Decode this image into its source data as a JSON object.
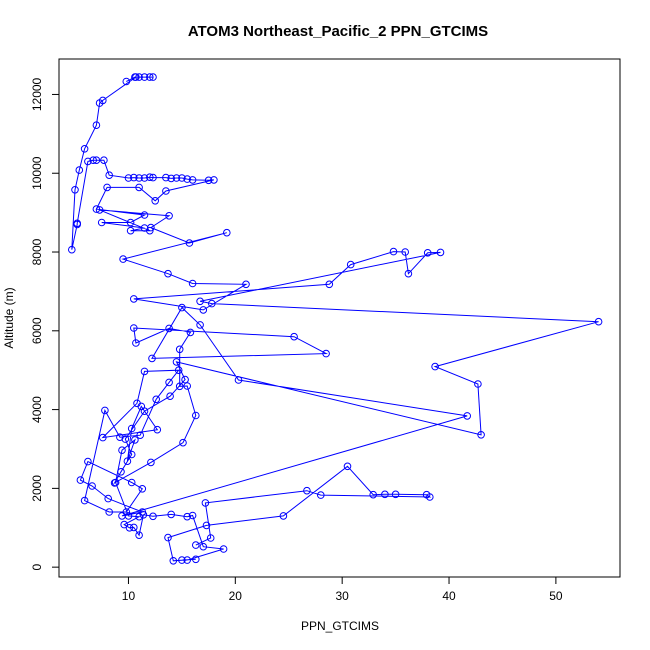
{
  "chart_data": {
    "type": "line",
    "title": "ATOM3 Northeast_Pacific_2 PPN_GTCIMS",
    "xlabel": "PPN_GTCIMS",
    "ylabel": "Altitude (m)",
    "xlim": [
      3.5,
      56
    ],
    "ylim": [
      -250,
      12900
    ],
    "xticks": [
      10,
      20,
      30,
      40,
      50
    ],
    "yticks": [
      0,
      2000,
      4000,
      6000,
      8000,
      10000,
      12000
    ],
    "grid": false,
    "legend": "none",
    "line_color": "#0000ff",
    "marker": "open-circle",
    "series": [
      {
        "x": [
          9.8,
          10.6,
          11.0,
          11.5,
          12.0,
          12.3,
          10.7,
          7.6,
          7.3,
          7.0,
          5.9,
          5.4,
          5.0,
          4.7,
          5.2,
          5.2,
          6.2,
          6.7,
          7.0,
          7.7,
          8.2,
          10.0,
          10.5,
          11.0,
          11.5,
          12.0,
          12.3,
          13.5,
          14.0,
          14.5,
          15.0,
          15.5,
          16.0,
          17.5,
          18.0,
          13.5,
          12.5,
          11.0,
          8.0,
          7.0,
          11.5,
          10.2,
          7.5,
          11.5,
          10.2,
          12.0,
          7.3,
          13.8,
          12.1,
          15.7,
          19.2,
          9.5,
          13.7,
          16.0,
          21.0,
          17.0,
          10.5,
          28.8,
          30.8,
          34.8,
          35.9,
          36.2,
          38.0,
          39.2,
          16.7,
          17.8,
          54.0,
          38.7,
          42.7,
          43.0,
          14.5,
          15.3,
          13.9,
          11.5,
          9.7,
          10.3,
          9.3,
          8.7,
          12.1,
          15.1,
          16.3,
          15.5,
          14.8,
          14.8,
          15.8,
          13.8,
          10.7,
          10.5,
          25.5,
          28.5,
          12.2,
          15.0,
          16.7,
          20.3,
          41.7,
          9.4,
          11.3,
          8.1,
          6.6,
          5.5,
          6.2,
          10.3,
          11.3,
          9.8,
          8.2,
          5.9,
          7.8,
          9.2,
          11.1,
          12.6,
          13.8,
          14.7,
          11.5,
          10.8,
          7.6,
          12.7,
          11.2,
          10.3,
          9.9,
          10.6,
          9.4,
          8.8,
          10.0,
          11.0,
          9.6,
          10.1,
          10.5,
          11.0,
          11.4,
          12.3,
          14.0,
          15.5,
          16.0,
          17.0,
          18.9,
          15.5,
          15.0,
          16.3,
          14.2,
          13.7,
          17.3,
          24.5,
          30.5,
          32.9,
          34.0,
          35.0,
          37.9,
          38.2,
          28.0,
          26.7,
          17.2,
          17.7,
          16.3
        ]
      }
    ]
  }
}
